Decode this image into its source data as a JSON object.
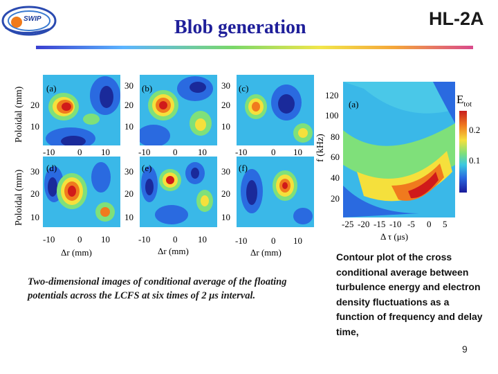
{
  "header": {
    "logo_text": "SWIP",
    "title": "Blob generation",
    "device": "HL-2A"
  },
  "left_figure": {
    "panels": [
      "(a)",
      "(b)",
      "(c)",
      "(d)",
      "(e)",
      "(f)"
    ],
    "y_axis_label": "Poloidal (mm)",
    "y_ticks": [
      "30",
      "20",
      "10"
    ],
    "x_ticks": [
      "-10",
      "0",
      "10"
    ],
    "x_axis_label_left": "Δr (mm)",
    "x_axis_label_mid": "Δr (mm)",
    "x_axis_label_right": "Δr (mm)"
  },
  "left_caption": "Two-dimensional images of conditional average of the floating potentials across the LCFS at six times of 2 μs interval.",
  "right_figure": {
    "panel": "(a)",
    "y_axis_label": "f (kHz)",
    "y_ticks": [
      "120",
      "100",
      "80",
      "60",
      "40",
      "20"
    ],
    "x_ticks": [
      "-25",
      "-20",
      "-15",
      "-10",
      "-5",
      "0",
      "5"
    ],
    "x_axis_label": "Δ τ (μs)",
    "colorbar_title": "E",
    "colorbar_sub": "tot",
    "colorbar_ticks": [
      "0.2",
      "0.1"
    ]
  },
  "right_caption": "Contour plot of the cross conditional average between turbulence energy and electron density fluctuations as a function of frequency and delay time,",
  "page_number": "9",
  "colors": {
    "title": "#1f1f9a",
    "contour_bg": "#3ab8e8",
    "hot": "#d01a1a",
    "cold": "#1a2a9a"
  }
}
